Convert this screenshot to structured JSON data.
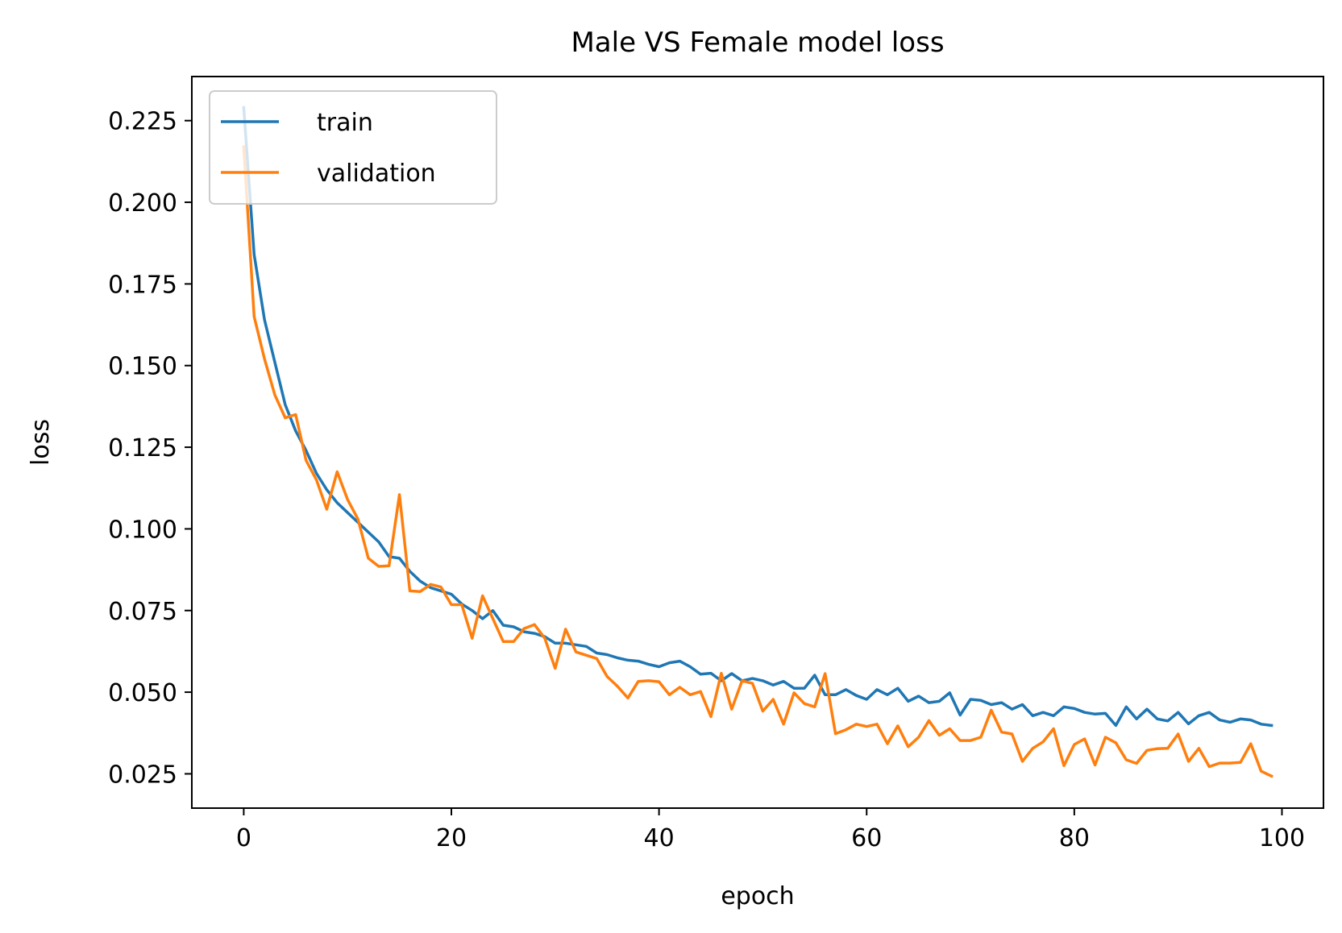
{
  "chart_data": {
    "type": "line",
    "title": "Male VS Female model loss",
    "xlabel": "epoch",
    "ylabel": "loss",
    "xlim": [
      -5,
      104
    ],
    "ylim": [
      0.0145,
      0.2385
    ],
    "xticks": [
      0,
      20,
      40,
      60,
      80,
      100
    ],
    "yticks": [
      0.025,
      0.05,
      0.075,
      0.1,
      0.125,
      0.15,
      0.175,
      0.2,
      0.225
    ],
    "xtick_labels": [
      "0",
      "20",
      "40",
      "60",
      "80",
      "100"
    ],
    "ytick_labels": [
      "0.025",
      "0.050",
      "0.075",
      "0.100",
      "0.125",
      "0.150",
      "0.175",
      "0.200",
      "0.225"
    ],
    "grid": false,
    "legend_position": "upper left",
    "series": [
      {
        "name": "train",
        "color": "#1f77b4",
        "x": [
          0,
          1,
          2,
          3,
          4,
          5,
          6,
          7,
          8,
          9,
          10,
          11,
          12,
          13,
          14,
          15,
          16,
          17,
          18,
          19,
          20,
          21,
          22,
          23,
          24,
          25,
          26,
          27,
          28,
          29,
          30,
          31,
          32,
          33,
          34,
          35,
          36,
          37,
          38,
          39,
          40,
          41,
          42,
          43,
          44,
          45,
          46,
          47,
          48,
          49,
          50,
          51,
          52,
          53,
          54,
          55,
          56,
          57,
          58,
          59,
          60,
          61,
          62,
          63,
          64,
          65,
          66,
          67,
          68,
          69,
          70,
          71,
          72,
          73,
          74,
          75,
          76,
          77,
          78,
          79,
          80,
          81,
          82,
          83,
          84,
          85,
          86,
          87,
          88,
          89,
          90,
          91,
          92,
          93,
          94,
          95,
          96,
          97,
          98,
          99
        ],
        "values": [
          0.229,
          0.184,
          0.164,
          0.151,
          0.138,
          0.13,
          0.124,
          0.117,
          0.112,
          0.108,
          0.105,
          0.102,
          0.099,
          0.096,
          0.0915,
          0.091,
          0.087,
          0.084,
          0.082,
          0.081,
          0.08,
          0.077,
          0.075,
          0.0725,
          0.075,
          0.0705,
          0.07,
          0.0685,
          0.068,
          0.067,
          0.065,
          0.065,
          0.0645,
          0.064,
          0.062,
          0.0615,
          0.0605,
          0.0598,
          0.0595,
          0.0585,
          0.0578,
          0.059,
          0.0595,
          0.0578,
          0.0555,
          0.0558,
          0.0535,
          0.0557,
          0.0535,
          0.0542,
          0.0535,
          0.0522,
          0.0533,
          0.0512,
          0.0512,
          0.0552,
          0.0492,
          0.0492,
          0.0508,
          0.049,
          0.0478,
          0.0508,
          0.0492,
          0.0512,
          0.0472,
          0.0488,
          0.0468,
          0.0472,
          0.0498,
          0.043,
          0.0478,
          0.0475,
          0.0462,
          0.0468,
          0.0448,
          0.0462,
          0.0428,
          0.0438,
          0.0428,
          0.0455,
          0.045,
          0.0438,
          0.0433,
          0.0435,
          0.0398,
          0.0455,
          0.0418,
          0.0448,
          0.0418,
          0.0412,
          0.0438,
          0.0403,
          0.0428,
          0.0438,
          0.0415,
          0.0408,
          0.0418,
          0.0415,
          0.0402,
          0.0398
        ]
      },
      {
        "name": "validation",
        "color": "#ff7f0e",
        "x": [
          0,
          1,
          2,
          3,
          4,
          5,
          6,
          7,
          8,
          9,
          10,
          11,
          12,
          13,
          14,
          15,
          16,
          17,
          18,
          19,
          20,
          21,
          22,
          23,
          24,
          25,
          26,
          27,
          28,
          29,
          30,
          31,
          32,
          33,
          34,
          35,
          36,
          37,
          38,
          39,
          40,
          41,
          42,
          43,
          44,
          45,
          46,
          47,
          48,
          49,
          50,
          51,
          52,
          53,
          54,
          55,
          56,
          57,
          58,
          59,
          60,
          61,
          62,
          63,
          64,
          65,
          66,
          67,
          68,
          69,
          70,
          71,
          72,
          73,
          74,
          75,
          76,
          77,
          78,
          79,
          80,
          81,
          82,
          83,
          84,
          85,
          86,
          87,
          88,
          89,
          90,
          91,
          92,
          93,
          94,
          95,
          96,
          97,
          98,
          99
        ],
        "values": [
          0.217,
          0.165,
          0.152,
          0.141,
          0.134,
          0.135,
          0.121,
          0.115,
          0.106,
          0.1175,
          0.109,
          0.103,
          0.091,
          0.0885,
          0.0887,
          0.1105,
          0.081,
          0.0808,
          0.083,
          0.0822,
          0.0768,
          0.0768,
          0.0665,
          0.0795,
          0.0725,
          0.0655,
          0.0655,
          0.0695,
          0.0707,
          0.0665,
          0.0573,
          0.0693,
          0.0623,
          0.0613,
          0.0603,
          0.0548,
          0.0518,
          0.0482,
          0.0533,
          0.0535,
          0.0532,
          0.0492,
          0.0515,
          0.0492,
          0.0502,
          0.0425,
          0.0558,
          0.0448,
          0.0535,
          0.0527,
          0.0442,
          0.0478,
          0.0402,
          0.0498,
          0.0465,
          0.0455,
          0.0557,
          0.0373,
          0.0385,
          0.0402,
          0.0395,
          0.0402,
          0.0342,
          0.0397,
          0.0333,
          0.0362,
          0.0413,
          0.0368,
          0.0388,
          0.0352,
          0.0352,
          0.0362,
          0.0445,
          0.0378,
          0.0372,
          0.0288,
          0.0328,
          0.0348,
          0.0388,
          0.0275,
          0.034,
          0.0357,
          0.0277,
          0.0362,
          0.0345,
          0.0293,
          0.0282,
          0.0322,
          0.0327,
          0.0328,
          0.0372,
          0.0288,
          0.0328,
          0.0272,
          0.0283,
          0.0283,
          0.0285,
          0.0342,
          0.0258,
          0.0243
        ]
      }
    ]
  }
}
